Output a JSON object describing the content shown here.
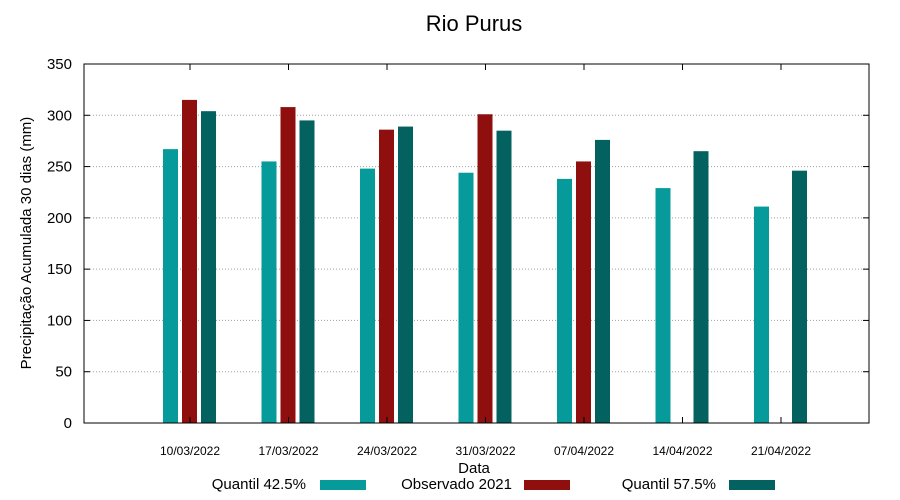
{
  "chart_data": {
    "type": "bar",
    "title": "Rio Purus",
    "xlabel": "Data",
    "ylabel": "Precipitação Acumulada 30 dias (mm)",
    "ylim": [
      0,
      350
    ],
    "yticks": [
      "0",
      "50",
      "100",
      "150",
      "200",
      "250",
      "300",
      "350"
    ],
    "grid": true,
    "legend_position": "bottom",
    "categories": [
      "10/03/2022",
      "17/03/2022",
      "24/03/2022",
      "31/03/2022",
      "07/04/2022",
      "14/04/2022",
      "21/04/2022"
    ],
    "series": [
      {
        "name": "Quantil 42.5%",
        "color": "#069a9a",
        "values": [
          267,
          255,
          248,
          244,
          238,
          229,
          211
        ]
      },
      {
        "name": "Observado 2021",
        "color": "#8f0f0f",
        "values": [
          315,
          308,
          286,
          301,
          255,
          null,
          null
        ]
      },
      {
        "name": "Quantil 57.5%",
        "color": "#03625f",
        "values": [
          304,
          295,
          289,
          285,
          276,
          265,
          246
        ]
      }
    ]
  }
}
